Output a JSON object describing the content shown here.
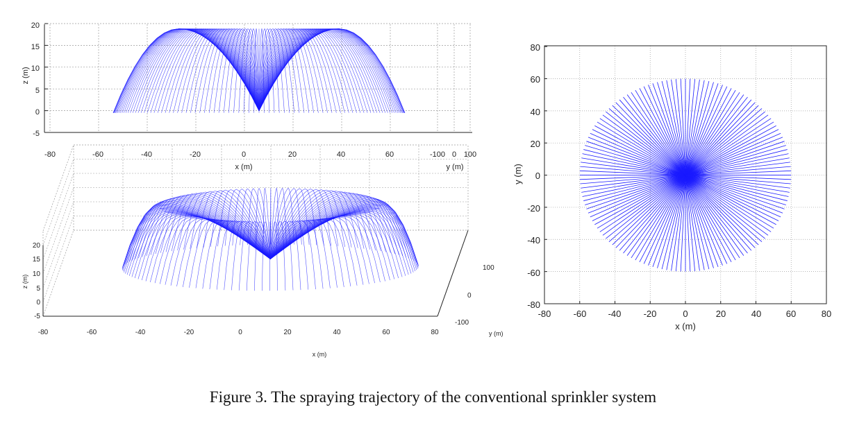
{
  "caption": "Figure 3. The spraying trajectory of the conventional sprinkler system",
  "colors": {
    "trajectory": "#1a1aff",
    "grid": "#9a9a9a",
    "axis": "#222222"
  },
  "chart_data": [
    {
      "type": "line",
      "view": "side (x-z projection)",
      "xlabel": "x (m)",
      "ylabel": "z (m)",
      "y2label": "y (m)",
      "xlim": [
        -80,
        100
      ],
      "ylim": [
        -5,
        20
      ],
      "xticks": [
        "-80",
        "-60",
        "-40",
        "-20",
        "0",
        "20",
        "40",
        "60",
        "-100",
        "0",
        "100"
      ],
      "yticks": [
        "-5",
        "0",
        "5",
        "10",
        "15",
        "20"
      ],
      "nozzle_x": 6,
      "nozzle_z": 0,
      "ground_z": -0.5,
      "max_height": 18.8,
      "throw_radius": 60,
      "grid": true
    },
    {
      "type": "line",
      "view": "3-D perspective",
      "xlabel": "x (m)",
      "ylabel": "z (m)",
      "y2label": "y (m)",
      "xticks": [
        "-80",
        "-60",
        "-40",
        "-20",
        "0",
        "20",
        "40",
        "60",
        "80"
      ],
      "yticks": [
        "-5",
        "0",
        "5",
        "10",
        "15",
        "20"
      ],
      "y2ticks": [
        "100",
        "0",
        "-100"
      ],
      "max_height": 18.8,
      "throw_radius": 60,
      "grid": true
    },
    {
      "type": "line",
      "view": "top (x-y projection)",
      "xlabel": "x (m)",
      "ylabel": "y (m)",
      "xlim": [
        -80,
        80
      ],
      "ylim": [
        -80,
        80
      ],
      "xticks": [
        "-80",
        "-60",
        "-40",
        "-20",
        "0",
        "20",
        "40",
        "60",
        "80"
      ],
      "yticks": [
        "-80",
        "-60",
        "-40",
        "-20",
        "0",
        "20",
        "40",
        "60",
        "80"
      ],
      "throw_radius": 60,
      "grid": true
    }
  ]
}
